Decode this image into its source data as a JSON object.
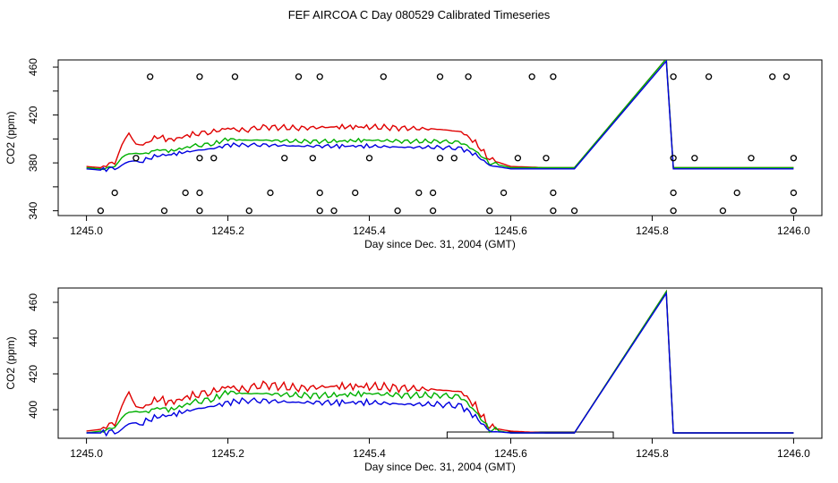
{
  "title": "FEF AIRCOA C  Day 080529  Calibrated Timeseries",
  "colors": {
    "red": "#e00000",
    "green": "#00b000",
    "blue": "#0000e0",
    "points": "#000000"
  },
  "chart_data": [
    {
      "type": "line",
      "name": "top-panel",
      "xlabel": "Day since Dec. 31, 2004 (GMT)",
      "ylabel": "CO2 (ppm)",
      "xlim": [
        1244.96,
        1246.04
      ],
      "ylim": [
        336,
        466
      ],
      "xticks": [
        "1245.0",
        "1245.2",
        "1245.4",
        "1245.6",
        "1245.8",
        "1246.0"
      ],
      "yticks": [
        "340",
        "360",
        "380",
        "400",
        "420",
        "440",
        "460"
      ],
      "ytick_labels_shown": [
        "340",
        "380",
        "420",
        "460"
      ],
      "series": [
        {
          "name": "red",
          "color": "red",
          "x": [
            1245.0,
            1245.02,
            1245.04,
            1245.05,
            1245.06,
            1245.07,
            1245.08,
            1245.1,
            1245.12,
            1245.15,
            1245.18,
            1245.2,
            1245.22,
            1245.25,
            1245.3,
            1245.35,
            1245.4,
            1245.45,
            1245.5,
            1245.53,
            1245.55,
            1245.57,
            1245.6,
            1245.65,
            1245.69,
            1245.82,
            1245.83,
            1245.9,
            1246.0
          ],
          "y": [
            377,
            376,
            381,
            395,
            406,
            398,
            395,
            402,
            399,
            404,
            406,
            409,
            407,
            410,
            409,
            410,
            410,
            409,
            408,
            406,
            397,
            383,
            377,
            376,
            376,
            467,
            376,
            376,
            376
          ]
        },
        {
          "name": "green",
          "color": "green",
          "x": [
            1245.0,
            1245.02,
            1245.04,
            1245.05,
            1245.06,
            1245.07,
            1245.08,
            1245.1,
            1245.12,
            1245.15,
            1245.18,
            1245.2,
            1245.22,
            1245.25,
            1245.3,
            1245.35,
            1245.4,
            1245.45,
            1245.5,
            1245.53,
            1245.55,
            1245.57,
            1245.6,
            1245.65,
            1245.69,
            1245.82,
            1245.83,
            1245.9,
            1246.0
          ],
          "y": [
            376,
            375,
            377,
            383,
            386,
            388,
            387,
            391,
            390,
            394,
            396,
            400,
            399,
            399,
            398,
            398,
            399,
            398,
            398,
            397,
            390,
            380,
            376,
            376,
            376,
            467,
            376,
            376,
            376
          ]
        },
        {
          "name": "blue",
          "color": "blue",
          "x": [
            1245.0,
            1245.02,
            1245.04,
            1245.05,
            1245.06,
            1245.07,
            1245.08,
            1245.1,
            1245.12,
            1245.15,
            1245.18,
            1245.2,
            1245.22,
            1245.25,
            1245.3,
            1245.35,
            1245.4,
            1245.45,
            1245.5,
            1245.53,
            1245.55,
            1245.57,
            1245.6,
            1245.65,
            1245.69,
            1245.82,
            1245.83,
            1245.9,
            1246.0
          ],
          "y": [
            375,
            374,
            376,
            379,
            381,
            383,
            382,
            386,
            387,
            390,
            392,
            395,
            395,
            395,
            394,
            394,
            394,
            393,
            393,
            392,
            387,
            378,
            375,
            375,
            375,
            465,
            375,
            375,
            375
          ]
        }
      ],
      "points": {
        "name": "calibration-points",
        "color": "points",
        "x": [
          1245.02,
          1245.04,
          1245.07,
          1245.09,
          1245.11,
          1245.14,
          1245.16,
          1245.16,
          1245.16,
          1245.16,
          1245.18,
          1245.21,
          1245.23,
          1245.26,
          1245.28,
          1245.3,
          1245.32,
          1245.33,
          1245.33,
          1245.33,
          1245.35,
          1245.38,
          1245.4,
          1245.42,
          1245.44,
          1245.47,
          1245.49,
          1245.49,
          1245.5,
          1245.5,
          1245.52,
          1245.54,
          1245.57,
          1245.59,
          1245.61,
          1245.63,
          1245.65,
          1245.66,
          1245.66,
          1245.66,
          1245.69,
          1245.83,
          1245.83,
          1245.83,
          1245.83,
          1245.86,
          1245.88,
          1245.9,
          1245.92,
          1245.94,
          1245.97,
          1245.99,
          1246.0,
          1246.0,
          1246.0
        ],
        "y": [
          340,
          355,
          384,
          452,
          340,
          355,
          340,
          355,
          384,
          452,
          384,
          452,
          340,
          355,
          384,
          452,
          384,
          340,
          355,
          452,
          340,
          355,
          384,
          452,
          340,
          355,
          340,
          355,
          384,
          452,
          384,
          452,
          340,
          355,
          384,
          452,
          384,
          340,
          355,
          452,
          340,
          340,
          355,
          384,
          452,
          384,
          452,
          340,
          355,
          384,
          452,
          452,
          384,
          355,
          340
        ]
      }
    },
    {
      "type": "line",
      "name": "bottom-panel",
      "xlabel": "Day since Dec. 31, 2004 (GMT)",
      "ylabel": "CO2 (ppm)",
      "xlim": [
        1244.96,
        1246.04
      ],
      "ylim": [
        384,
        468
      ],
      "xticks": [
        "1245.0",
        "1245.2",
        "1245.4",
        "1245.6",
        "1245.8",
        "1246.0"
      ],
      "yticks": [
        "400",
        "420",
        "440",
        "460"
      ],
      "series": [
        {
          "name": "red",
          "color": "red",
          "x": [
            1245.0,
            1245.02,
            1245.04,
            1245.05,
            1245.06,
            1245.07,
            1245.08,
            1245.1,
            1245.12,
            1245.15,
            1245.18,
            1245.2,
            1245.22,
            1245.25,
            1245.3,
            1245.35,
            1245.4,
            1245.45,
            1245.5,
            1245.53,
            1245.55,
            1245.57,
            1245.6,
            1245.65,
            1245.69,
            1245.82,
            1245.83,
            1245.9,
            1246.0
          ],
          "y": [
            388,
            389,
            393,
            402,
            411,
            404,
            401,
            406,
            404,
            408,
            410,
            413,
            411,
            414,
            412,
            413,
            413,
            412,
            411,
            410,
            402,
            390,
            388,
            387,
            387,
            466,
            387,
            387,
            387
          ]
        },
        {
          "name": "green",
          "color": "green",
          "x": [
            1245.0,
            1245.02,
            1245.04,
            1245.05,
            1245.06,
            1245.07,
            1245.08,
            1245.1,
            1245.12,
            1245.15,
            1245.18,
            1245.2,
            1245.22,
            1245.25,
            1245.3,
            1245.35,
            1245.4,
            1245.45,
            1245.5,
            1245.53,
            1245.55,
            1245.57,
            1245.6,
            1245.65,
            1245.69,
            1245.82,
            1245.83,
            1245.9,
            1246.0
          ],
          "y": [
            387,
            388,
            390,
            394,
            397,
            399,
            398,
            401,
            400,
            404,
            406,
            410,
            409,
            409,
            408,
            408,
            409,
            408,
            408,
            407,
            399,
            389,
            387,
            387,
            387,
            466,
            387,
            387,
            387
          ]
        },
        {
          "name": "blue",
          "color": "blue",
          "x": [
            1245.0,
            1245.02,
            1245.04,
            1245.05,
            1245.06,
            1245.07,
            1245.08,
            1245.1,
            1245.12,
            1245.15,
            1245.18,
            1245.2,
            1245.22,
            1245.25,
            1245.3,
            1245.35,
            1245.4,
            1245.45,
            1245.5,
            1245.53,
            1245.55,
            1245.57,
            1245.6,
            1245.65,
            1245.69,
            1245.82,
            1245.83,
            1245.9,
            1246.0
          ],
          "y": [
            387,
            387,
            388,
            390,
            392,
            394,
            393,
            396,
            397,
            400,
            402,
            404,
            405,
            405,
            404,
            404,
            404,
            403,
            403,
            402,
            396,
            388,
            387,
            387,
            387,
            465,
            387,
            387,
            387
          ]
        }
      ],
      "baseline_boxes": [
        {
          "x0": 1245.51,
          "x1": 1245.745,
          "y0": 384,
          "y1": 387.5
        }
      ]
    }
  ]
}
